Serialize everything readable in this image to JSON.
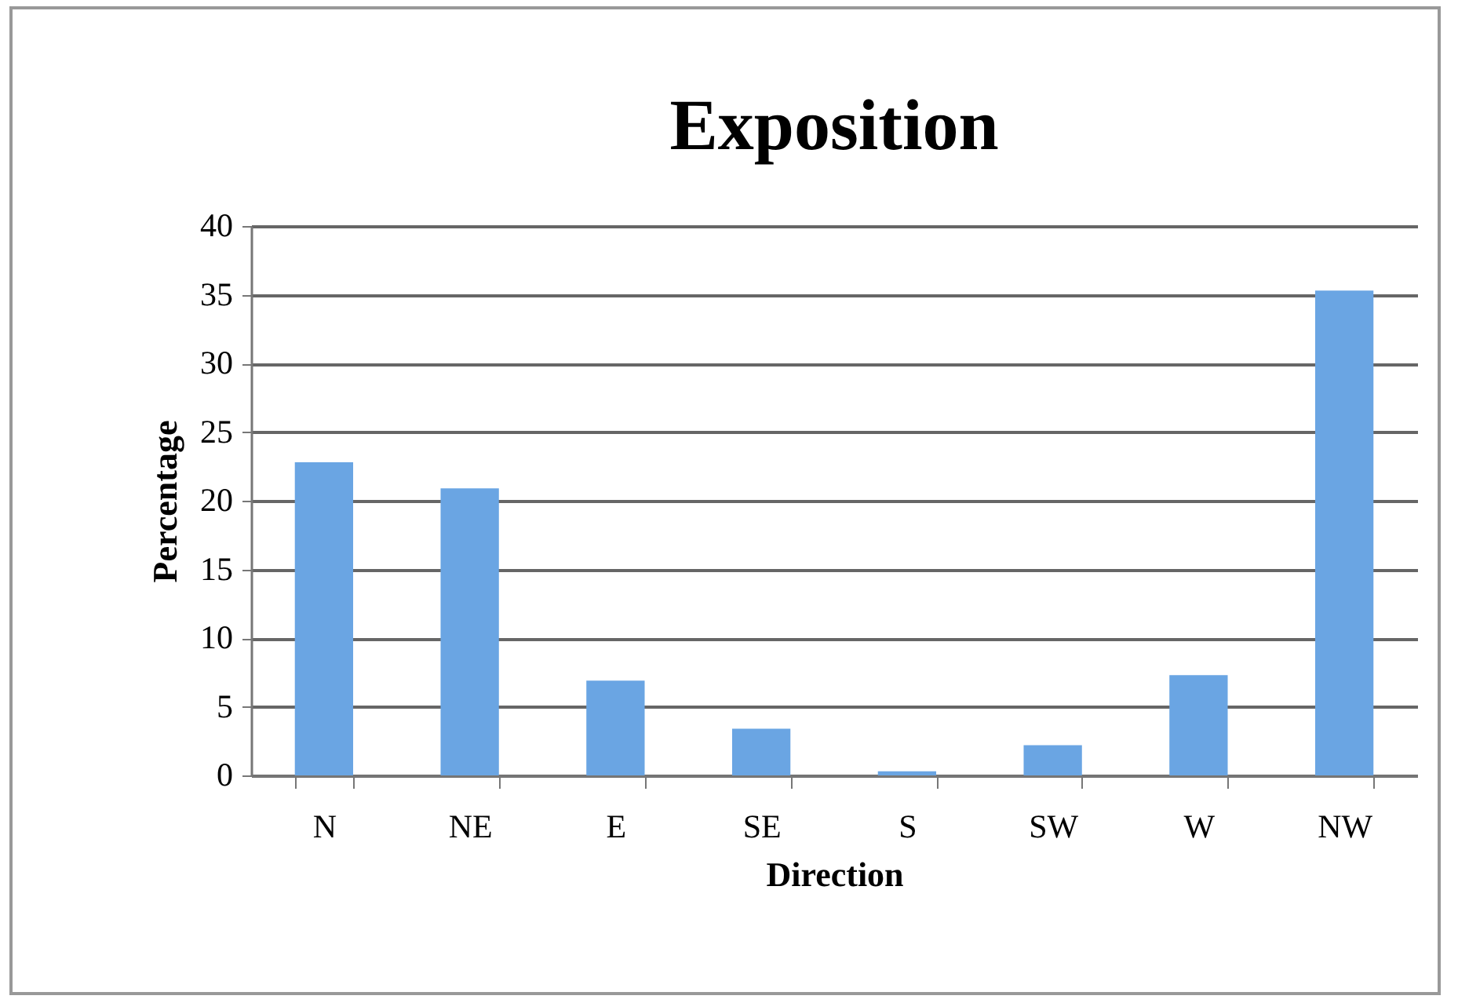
{
  "chart_data": {
    "type": "bar",
    "title": "Exposition",
    "xlabel": "Direction",
    "ylabel": "Percentage",
    "categories": [
      "N",
      "NE",
      "E",
      "SE",
      "S",
      "SW",
      "W",
      "NW"
    ],
    "values": [
      22.8,
      20.9,
      6.9,
      3.4,
      0.3,
      2.2,
      7.3,
      35.3
    ],
    "color": "#6aa5e3",
    "ylim": [
      0,
      40
    ],
    "yticks": [
      0,
      5,
      10,
      15,
      20,
      25,
      30,
      35,
      40
    ],
    "grid": "y"
  }
}
